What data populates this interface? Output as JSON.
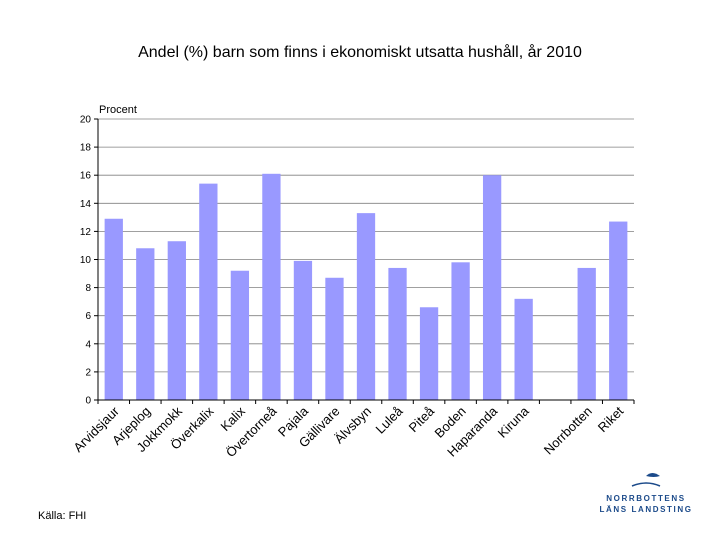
{
  "chart_data": {
    "type": "bar",
    "title": "Andel (%) barn som finns i ekonomiskt utsatta hushåll, år 2010",
    "ylabel": "Procent",
    "xlabel": "",
    "ylim": [
      0,
      20
    ],
    "yticks": [
      "0",
      "2",
      "4",
      "6",
      "8",
      "10",
      "12",
      "14",
      "16",
      "18",
      "20"
    ],
    "grid": true,
    "bar_color": "#9999ff",
    "categories": [
      "Arvidsjaur",
      "Arjeplog",
      "Jokkmokk",
      "Överkalix",
      "Kalix",
      "Övertorneå",
      "Pajala",
      "Gällivare",
      "Älvsbyn",
      "Luleå",
      "Piteå",
      "Boden",
      "Haparanda",
      "Kiruna",
      "",
      "Norrbotten",
      "Riket"
    ],
    "values": [
      12.9,
      10.8,
      11.3,
      15.4,
      9.2,
      16.1,
      9.9,
      8.7,
      13.3,
      9.4,
      6.6,
      9.8,
      16.0,
      7.2,
      null,
      9.4,
      12.7
    ]
  },
  "source": "Källa: FHI",
  "logo": {
    "line1": "NORRBOTTENS",
    "line2": "LÄNS LANDSTING",
    "color": "#1b4a8a"
  }
}
